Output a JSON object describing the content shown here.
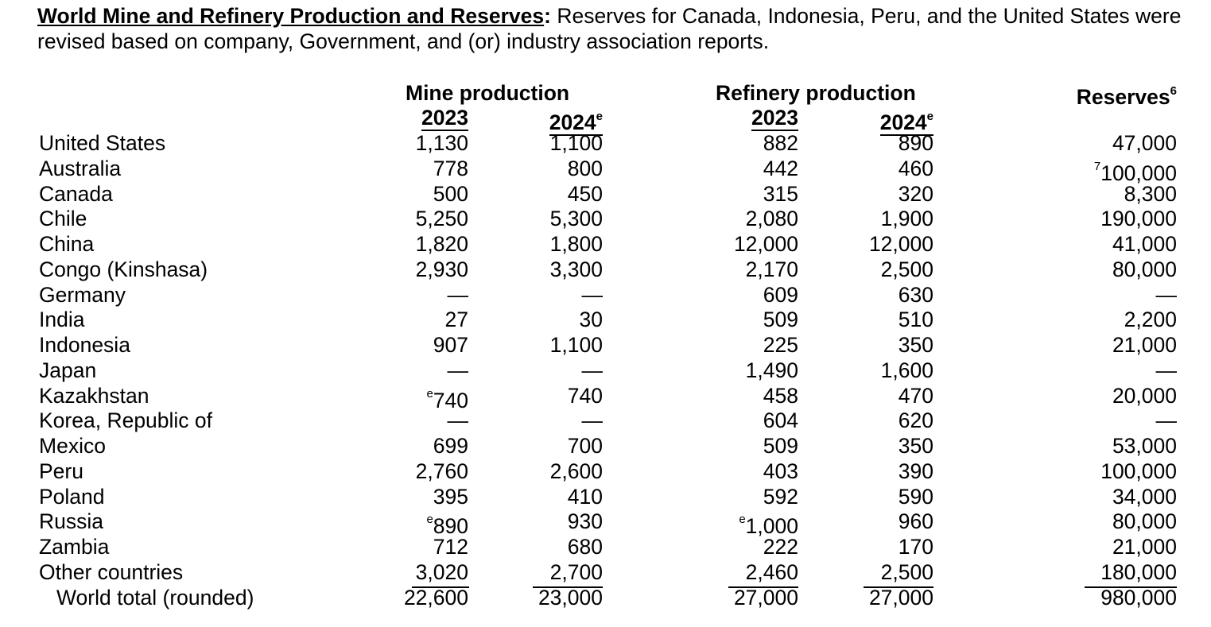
{
  "intro": {
    "heading": "World Mine and Refinery Production and Reserves",
    "colon": ":",
    "text": " Reserves for Canada, Indonesia, Peru, and the United States were revised based on company, Government, and (or) industry association reports."
  },
  "columns": {
    "mine_production": "Mine production",
    "refinery_production": "Refinery production",
    "reserves": "Reserves",
    "reserves_note": "6",
    "year_2023": "2023",
    "year_2024": "2024",
    "estimate_mark": "e"
  },
  "rows": [
    {
      "country": "United States",
      "mine_2023": "1,130",
      "mine_2024": "1,100",
      "ref_2023": "882",
      "ref_2024": "890",
      "reserves": "47,000"
    },
    {
      "country": "Australia",
      "mine_2023": "778",
      "mine_2024": "800",
      "ref_2023": "442",
      "ref_2024": "460",
      "reserves_mark": "7",
      "reserves": "100,000"
    },
    {
      "country": "Canada",
      "mine_2023": "500",
      "mine_2024": "450",
      "ref_2023": "315",
      "ref_2024": "320",
      "reserves": "8,300"
    },
    {
      "country": "Chile",
      "mine_2023": "5,250",
      "mine_2024": "5,300",
      "ref_2023": "2,080",
      "ref_2024": "1,900",
      "reserves": "190,000"
    },
    {
      "country": "China",
      "mine_2023": "1,820",
      "mine_2024": "1,800",
      "ref_2023": "12,000",
      "ref_2024": "12,000",
      "reserves": "41,000"
    },
    {
      "country": "Congo (Kinshasa)",
      "mine_2023": "2,930",
      "mine_2024": "3,300",
      "ref_2023": "2,170",
      "ref_2024": "2,500",
      "reserves": "80,000"
    },
    {
      "country": "Germany",
      "mine_2023": "—",
      "mine_2024": "—",
      "ref_2023": "609",
      "ref_2024": "630",
      "reserves": "—"
    },
    {
      "country": "India",
      "mine_2023": "27",
      "mine_2024": "30",
      "ref_2023": "509",
      "ref_2024": "510",
      "reserves": "2,200"
    },
    {
      "country": "Indonesia",
      "mine_2023": "907",
      "mine_2024": "1,100",
      "ref_2023": "225",
      "ref_2024": "350",
      "reserves": "21,000"
    },
    {
      "country": "Japan",
      "mine_2023": "—",
      "mine_2024": "—",
      "ref_2023": "1,490",
      "ref_2024": "1,600",
      "reserves": "—"
    },
    {
      "country": "Kazakhstan",
      "mine_2023_mark": "e",
      "mine_2023": "740",
      "mine_2024": "740",
      "ref_2023": "458",
      "ref_2024": "470",
      "reserves": "20,000"
    },
    {
      "country": "Korea, Republic of",
      "mine_2023": "—",
      "mine_2024": "—",
      "ref_2023": "604",
      "ref_2024": "620",
      "reserves": "—"
    },
    {
      "country": "Mexico",
      "mine_2023": "699",
      "mine_2024": "700",
      "ref_2023": "509",
      "ref_2024": "350",
      "reserves": "53,000"
    },
    {
      "country": "Peru",
      "mine_2023": "2,760",
      "mine_2024": "2,600",
      "ref_2023": "403",
      "ref_2024": "390",
      "reserves": "100,000"
    },
    {
      "country": "Poland",
      "mine_2023": "395",
      "mine_2024": "410",
      "ref_2023": "592",
      "ref_2024": "590",
      "reserves": "34,000"
    },
    {
      "country": "Russia",
      "mine_2023_mark": "e",
      "mine_2023": "890",
      "mine_2024": "930",
      "ref_2023_mark": "e",
      "ref_2023": "1,000",
      "ref_2024": "960",
      "reserves": "80,000"
    },
    {
      "country": "Zambia",
      "mine_2023": "712",
      "mine_2024": "680",
      "ref_2023": "222",
      "ref_2024": "170",
      "reserves": "21,000"
    },
    {
      "country": "Other countries",
      "mine_2023": "3,020",
      "mine_2024": "2,700",
      "ref_2023": "2,460",
      "ref_2024": "2,500",
      "reserves": "180,000"
    }
  ],
  "total": {
    "country": "World total (rounded)",
    "mine_2023": "22,600",
    "mine_2024": "23,000",
    "ref_2023": "27,000",
    "ref_2024": "27,000",
    "reserves": "980,000"
  }
}
